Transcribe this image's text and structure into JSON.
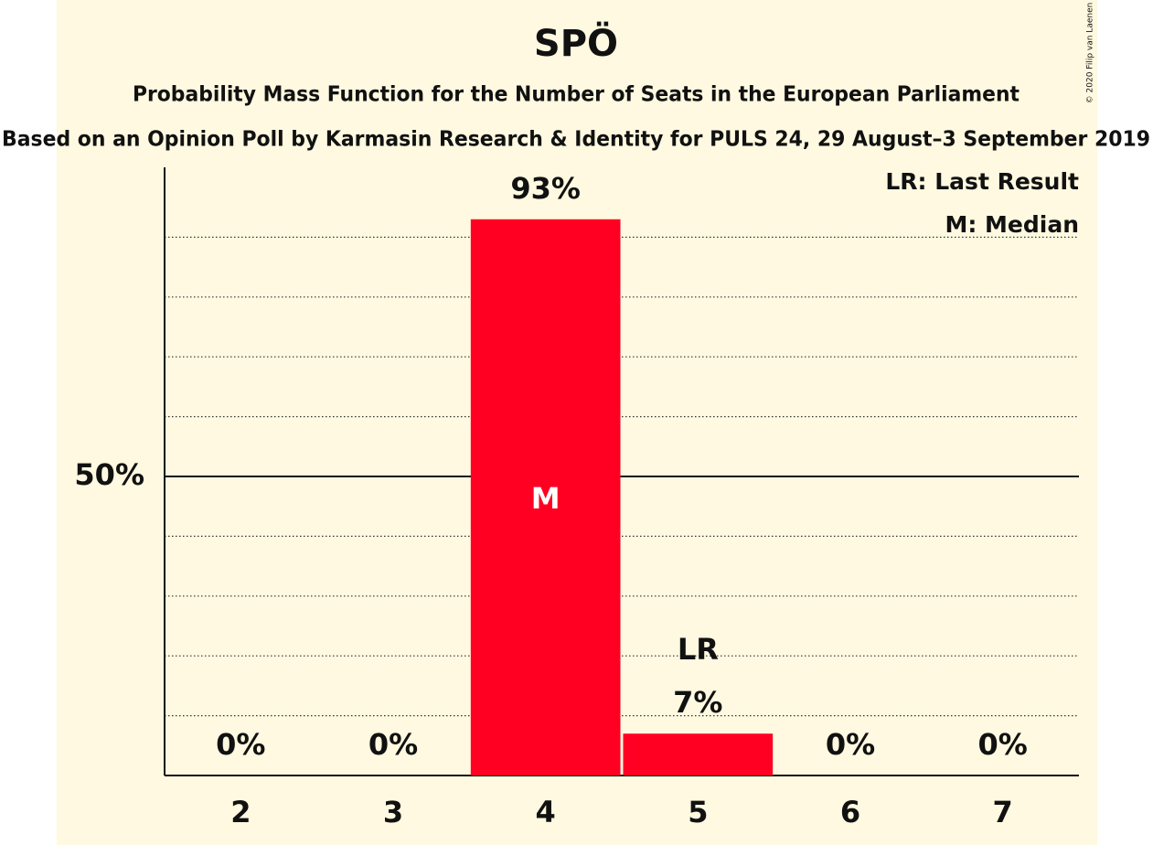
{
  "chart_data": {
    "type": "bar",
    "title": "SPÖ",
    "subtitle": "Probability Mass Function for the Number of Seats in the European Parliament",
    "subtitle2": "Based on an Opinion Poll by Karmasin Research & Identity for PULS 24, 29 August–3 September 2019",
    "copyright": "© 2020 Filip van Laenen",
    "categories": [
      "2",
      "3",
      "4",
      "5",
      "6",
      "7"
    ],
    "values": [
      0,
      0,
      93,
      7,
      0,
      0
    ],
    "value_labels": [
      "0%",
      "0%",
      "93%",
      "7%",
      "0%",
      "0%"
    ],
    "color": "#ff0022",
    "ylim": [
      0,
      100
    ],
    "yticks": [
      {
        "value": 50,
        "label": "50%"
      }
    ],
    "minor_grid": [
      10,
      20,
      30,
      40,
      60,
      70,
      80,
      90
    ],
    "grid": true,
    "legend": [
      "LR: Last Result",
      "M: Median"
    ],
    "legend_position": "top-right",
    "markers": {
      "median": {
        "label": "M",
        "category": "4"
      },
      "last_result": {
        "label": "LR",
        "category": "5"
      }
    }
  }
}
